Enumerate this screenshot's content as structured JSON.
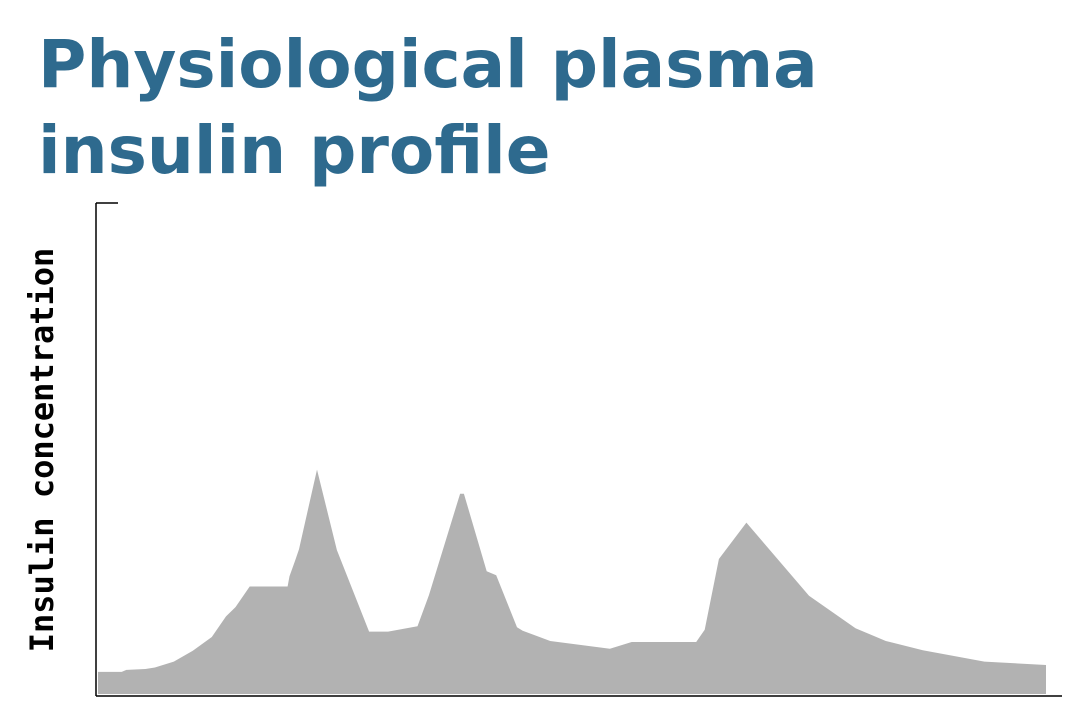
{
  "title": "Physiological plasma insulin profile",
  "chart_data": {
    "type": "area",
    "title": "Physiological plasma insulin profile",
    "xlabel": "",
    "ylabel": "Insulin concentration",
    "xlim": [
      0,
      100
    ],
    "ylim": [
      0,
      100
    ],
    "grid": false,
    "legend": "none",
    "fill_color": "#b2b2b2",
    "axis_color": "#000000",
    "series": [
      {
        "x": [
          0,
          2.5,
          3.0,
          5.0,
          6.0,
          8.0,
          10.0,
          12.0,
          13.5,
          14.5,
          16.0,
          20.0,
          20.2,
          20.8,
          21.2,
          23.1,
          25.2,
          28.6,
          30.6,
          33.7,
          34.9,
          38.2,
          38.6,
          41.0,
          42.0,
          44.2,
          44.8,
          47.7,
          54.0,
          56.3,
          63.1,
          64.0,
          65.5,
          68.4,
          75.0,
          79.9,
          83.1,
          87.0,
          93.5,
          100.0
        ],
        "y": [
          4.5,
          4.5,
          4.9,
          5.1,
          5.4,
          6.6,
          8.8,
          11.6,
          15.8,
          17.7,
          21.9,
          21.9,
          24.0,
          27.2,
          29.5,
          45.7,
          29.3,
          12.7,
          12.7,
          13.8,
          20.1,
          40.8,
          40.8,
          25.0,
          24.2,
          13.6,
          12.9,
          10.8,
          9.2,
          10.6,
          10.6,
          13.1,
          27.5,
          34.9,
          20.0,
          13.4,
          10.8,
          8.9,
          6.6,
          5.9
        ]
      }
    ]
  }
}
